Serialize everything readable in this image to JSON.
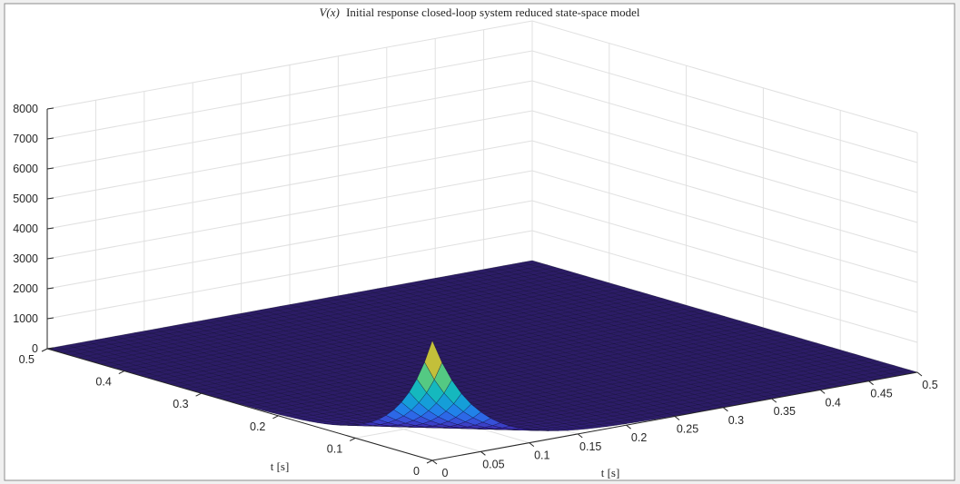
{
  "chart_data": {
    "type": "surface",
    "title": "V(x) Initial response closed-loop system reduced state-space model",
    "title_parts": {
      "math": "V(x)",
      "rest": "Initial response closed-loop system reduced state-space model"
    },
    "xlabel": "t [s]",
    "ylabel": "t [s]",
    "zlabel": "",
    "xlim": [
      0,
      0.5
    ],
    "ylim": [
      0,
      0.5
    ],
    "zlim": [
      0,
      8000
    ],
    "x_ticks": [
      "0",
      "0.05",
      "0.1",
      "0.15",
      "0.2",
      "0.25",
      "0.3",
      "0.35",
      "0.4",
      "0.45",
      "0.5"
    ],
    "y_ticks": [
      "0",
      "0.1",
      "0.2",
      "0.3",
      "0.4",
      "0.5"
    ],
    "z_ticks": [
      "0",
      "1000",
      "2000",
      "3000",
      "4000",
      "5000",
      "6000",
      "7000",
      "8000"
    ],
    "grid": true,
    "colormap": "parula",
    "colors": {
      "low": "#2c1c66",
      "mid": "#26a4c8",
      "high": "#f9fb0e",
      "background": "#ffffff",
      "figure": "#f0f0f0"
    },
    "surface": {
      "description_values": {
        "peak_z": 4000,
        "peak_at": [
          0,
          0
        ],
        "floor_z": 0
      }
    }
  }
}
